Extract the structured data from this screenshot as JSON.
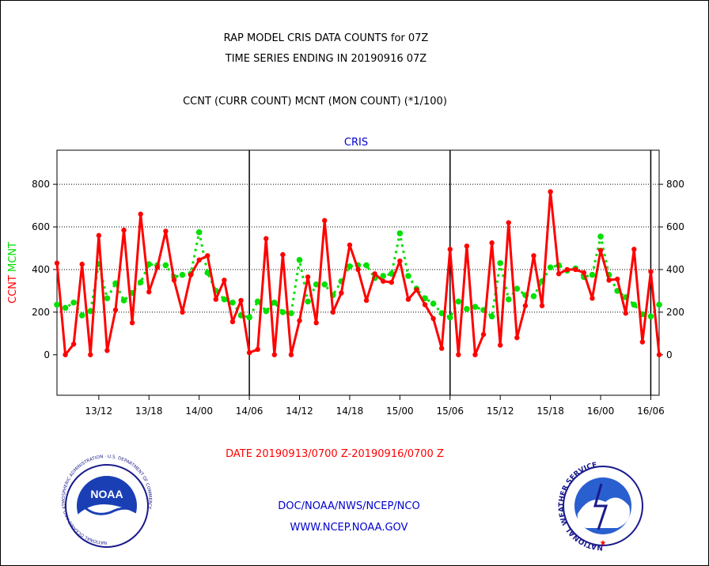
{
  "header": {
    "line1": "RAP MODEL CRIS DATA COUNTS for 07Z",
    "line2": "TIME SERIES ENDING IN 20190916 07Z",
    "line3": "CCNT (CURR COUNT) MCNT (MON COUNT) (*1/100)"
  },
  "footer": {
    "date_range": "DATE 20190913/0700 Z-20190916/0700 Z",
    "org": "DOC/NOAA/NWS/NCEP/NCO",
    "url": "WWW.NCEP.NOAA.GOV",
    "noaa_logo_text": "NOAA",
    "noaa_ring_text": "NATIONAL OCEANIC AND ATMOSPHERIC ADMINISTRATION · U.S. DEPARTMENT OF COMMERCE",
    "nws_ring_text": "NATIONAL WEATHER SERVICE"
  },
  "chart_data": {
    "type": "line",
    "title": "CRIS",
    "ylabel_ccnt": "CCNT",
    "ylabel_mcnt": "MCNT",
    "ylim": [
      -190,
      960
    ],
    "yticks": [
      0,
      200,
      400,
      600,
      800
    ],
    "x_range": [
      0,
      72
    ],
    "xticks": [
      {
        "label": "13/12",
        "x": 5
      },
      {
        "label": "13/18",
        "x": 11
      },
      {
        "label": "14/00",
        "x": 17
      },
      {
        "label": "14/06",
        "x": 23
      },
      {
        "label": "14/12",
        "x": 29
      },
      {
        "label": "14/18",
        "x": 35
      },
      {
        "label": "15/00",
        "x": 41
      },
      {
        "label": "15/06",
        "x": 47
      },
      {
        "label": "15/12",
        "x": 53
      },
      {
        "label": "15/18",
        "x": 59
      },
      {
        "label": "16/00",
        "x": 65
      },
      {
        "label": "16/06",
        "x": 71
      }
    ],
    "day_boundaries": [
      23,
      47,
      71
    ],
    "gridlines": [
      200,
      400,
      600,
      800
    ],
    "colors": {
      "ccnt": "#ff0000",
      "mcnt": "#00e000",
      "title": "#0000cc",
      "footer_red": "#ff0000",
      "footer_blue": "#0000cc"
    },
    "series": [
      {
        "name": "CCNT",
        "values": [
          430,
          0,
          50,
          425,
          0,
          560,
          20,
          210,
          585,
          150,
          660,
          295,
          410,
          580,
          350,
          200,
          375,
          445,
          465,
          260,
          350,
          155,
          255,
          10,
          25,
          545,
          0,
          470,
          0,
          160,
          365,
          150,
          630,
          200,
          290,
          515,
          400,
          255,
          380,
          345,
          340,
          440,
          260,
          305,
          235,
          170,
          30,
          495,
          0,
          510,
          0,
          95,
          525,
          45,
          620,
          80,
          230,
          465,
          230,
          765,
          380,
          400,
          400,
          385,
          265,
          490,
          350,
          355,
          195,
          495,
          60,
          390,
          0
        ]
      },
      {
        "name": "MCNT",
        "values": [
          235,
          220,
          245,
          185,
          205,
          425,
          265,
          335,
          255,
          290,
          340,
          425,
          420,
          420,
          365,
          375,
          380,
          575,
          385,
          300,
          260,
          245,
          185,
          175,
          250,
          205,
          245,
          200,
          195,
          445,
          250,
          330,
          330,
          280,
          345,
          415,
          420,
          420,
          360,
          370,
          380,
          570,
          370,
          310,
          265,
          240,
          195,
          175,
          250,
          215,
          225,
          210,
          180,
          430,
          260,
          310,
          280,
          275,
          345,
          410,
          420,
          395,
          405,
          365,
          375,
          555,
          375,
          300,
          270,
          235,
          190,
          180,
          235
        ]
      }
    ]
  }
}
